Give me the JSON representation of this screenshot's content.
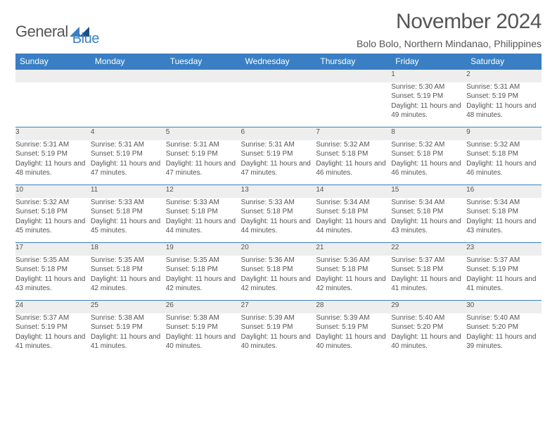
{
  "logo": {
    "word1": "General",
    "word2": "Blue"
  },
  "title": "November 2024",
  "subtitle": "Bolo Bolo, Northern Mindanao, Philippines",
  "header_bg": "#3a7fc4",
  "dayname_color": "#ffffff",
  "daynum_bg": "#eeeeee",
  "row_border": "#3a7fc4",
  "text_color": "#555555",
  "daynames": [
    "Sunday",
    "Monday",
    "Tuesday",
    "Wednesday",
    "Thursday",
    "Friday",
    "Saturday"
  ],
  "weeks": [
    {
      "nums": [
        "",
        "",
        "",
        "",
        "",
        "1",
        "2"
      ],
      "cells": [
        null,
        null,
        null,
        null,
        null,
        {
          "sunrise": "5:30 AM",
          "sunset": "5:19 PM",
          "daylight": "11 hours and 49 minutes."
        },
        {
          "sunrise": "5:31 AM",
          "sunset": "5:19 PM",
          "daylight": "11 hours and 48 minutes."
        }
      ]
    },
    {
      "nums": [
        "3",
        "4",
        "5",
        "6",
        "7",
        "8",
        "9"
      ],
      "cells": [
        {
          "sunrise": "5:31 AM",
          "sunset": "5:19 PM",
          "daylight": "11 hours and 48 minutes."
        },
        {
          "sunrise": "5:31 AM",
          "sunset": "5:19 PM",
          "daylight": "11 hours and 47 minutes."
        },
        {
          "sunrise": "5:31 AM",
          "sunset": "5:19 PM",
          "daylight": "11 hours and 47 minutes."
        },
        {
          "sunrise": "5:31 AM",
          "sunset": "5:19 PM",
          "daylight": "11 hours and 47 minutes."
        },
        {
          "sunrise": "5:32 AM",
          "sunset": "5:18 PM",
          "daylight": "11 hours and 46 minutes."
        },
        {
          "sunrise": "5:32 AM",
          "sunset": "5:18 PM",
          "daylight": "11 hours and 46 minutes."
        },
        {
          "sunrise": "5:32 AM",
          "sunset": "5:18 PM",
          "daylight": "11 hours and 46 minutes."
        }
      ]
    },
    {
      "nums": [
        "10",
        "11",
        "12",
        "13",
        "14",
        "15",
        "16"
      ],
      "cells": [
        {
          "sunrise": "5:32 AM",
          "sunset": "5:18 PM",
          "daylight": "11 hours and 45 minutes."
        },
        {
          "sunrise": "5:33 AM",
          "sunset": "5:18 PM",
          "daylight": "11 hours and 45 minutes."
        },
        {
          "sunrise": "5:33 AM",
          "sunset": "5:18 PM",
          "daylight": "11 hours and 44 minutes."
        },
        {
          "sunrise": "5:33 AM",
          "sunset": "5:18 PM",
          "daylight": "11 hours and 44 minutes."
        },
        {
          "sunrise": "5:34 AM",
          "sunset": "5:18 PM",
          "daylight": "11 hours and 44 minutes."
        },
        {
          "sunrise": "5:34 AM",
          "sunset": "5:18 PM",
          "daylight": "11 hours and 43 minutes."
        },
        {
          "sunrise": "5:34 AM",
          "sunset": "5:18 PM",
          "daylight": "11 hours and 43 minutes."
        }
      ]
    },
    {
      "nums": [
        "17",
        "18",
        "19",
        "20",
        "21",
        "22",
        "23"
      ],
      "cells": [
        {
          "sunrise": "5:35 AM",
          "sunset": "5:18 PM",
          "daylight": "11 hours and 43 minutes."
        },
        {
          "sunrise": "5:35 AM",
          "sunset": "5:18 PM",
          "daylight": "11 hours and 42 minutes."
        },
        {
          "sunrise": "5:35 AM",
          "sunset": "5:18 PM",
          "daylight": "11 hours and 42 minutes."
        },
        {
          "sunrise": "5:36 AM",
          "sunset": "5:18 PM",
          "daylight": "11 hours and 42 minutes."
        },
        {
          "sunrise": "5:36 AM",
          "sunset": "5:18 PM",
          "daylight": "11 hours and 42 minutes."
        },
        {
          "sunrise": "5:37 AM",
          "sunset": "5:18 PM",
          "daylight": "11 hours and 41 minutes."
        },
        {
          "sunrise": "5:37 AM",
          "sunset": "5:19 PM",
          "daylight": "11 hours and 41 minutes."
        }
      ]
    },
    {
      "nums": [
        "24",
        "25",
        "26",
        "27",
        "28",
        "29",
        "30"
      ],
      "cells": [
        {
          "sunrise": "5:37 AM",
          "sunset": "5:19 PM",
          "daylight": "11 hours and 41 minutes."
        },
        {
          "sunrise": "5:38 AM",
          "sunset": "5:19 PM",
          "daylight": "11 hours and 41 minutes."
        },
        {
          "sunrise": "5:38 AM",
          "sunset": "5:19 PM",
          "daylight": "11 hours and 40 minutes."
        },
        {
          "sunrise": "5:39 AM",
          "sunset": "5:19 PM",
          "daylight": "11 hours and 40 minutes."
        },
        {
          "sunrise": "5:39 AM",
          "sunset": "5:19 PM",
          "daylight": "11 hours and 40 minutes."
        },
        {
          "sunrise": "5:40 AM",
          "sunset": "5:20 PM",
          "daylight": "11 hours and 40 minutes."
        },
        {
          "sunrise": "5:40 AM",
          "sunset": "5:20 PM",
          "daylight": "11 hours and 39 minutes."
        }
      ]
    }
  ],
  "labels": {
    "sunrise": "Sunrise: ",
    "sunset": "Sunset: ",
    "daylight": "Daylight: "
  }
}
